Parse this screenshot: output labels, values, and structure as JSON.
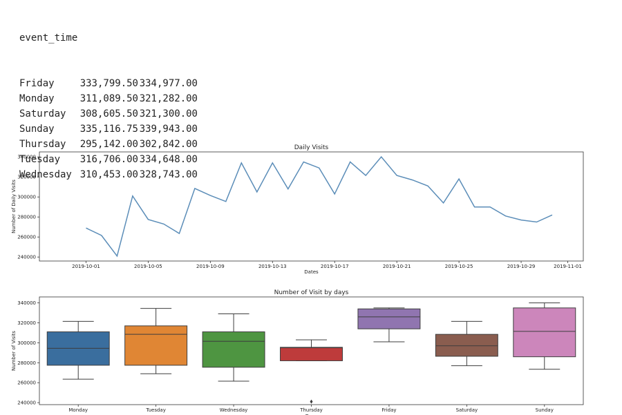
{
  "output": {
    "header": "event_time",
    "rows": [
      {
        "day": "Friday",
        "v1": "333,799.50",
        "v2": "334,977.00"
      },
      {
        "day": "Monday",
        "v1": "311,089.50",
        "v2": "321,282.00"
      },
      {
        "day": "Saturday",
        "v1": "308,605.50",
        "v2": "321,300.00"
      },
      {
        "day": "Sunday",
        "v1": "335,116.75",
        "v2": "339,943.00"
      },
      {
        "day": "Thursday",
        "v1": "295,142.00",
        "v2": "302,842.00"
      },
      {
        "day": "Tuesday",
        "v1": "316,706.00",
        "v2": "334,648.00"
      },
      {
        "day": "Wednesday",
        "v1": "310,453.00",
        "v2": "328,743.00"
      }
    ]
  },
  "chart_data": [
    {
      "type": "line",
      "title": "Daily Visits",
      "xlabel": "Dates",
      "ylabel": "Number of Daily Visits",
      "ylim": [
        236000,
        345000
      ],
      "yticks": [
        240000,
        260000,
        280000,
        300000,
        320000,
        340000
      ],
      "xticks": [
        "2019-10-01",
        "2019-10-05",
        "2019-10-09",
        "2019-10-13",
        "2019-10-17",
        "2019-10-21",
        "2019-10-25",
        "2019-10-29",
        "2019-11-01"
      ],
      "x_start": "2019-10-01",
      "color": "#5b8db8",
      "series": [
        {
          "x": [
            "2019-10-01",
            "2019-10-02",
            "2019-10-03",
            "2019-10-04",
            "2019-10-05",
            "2019-10-06",
            "2019-10-07",
            "2019-10-08",
            "2019-10-09",
            "2019-10-10",
            "2019-10-11",
            "2019-10-12",
            "2019-10-13",
            "2019-10-14",
            "2019-10-15",
            "2019-10-16",
            "2019-10-17",
            "2019-10-18",
            "2019-10-19",
            "2019-10-20",
            "2019-10-21",
            "2019-10-22",
            "2019-10-23",
            "2019-10-24",
            "2019-10-25",
            "2019-10-26",
            "2019-10-27",
            "2019-10-28",
            "2019-10-29",
            "2019-10-30",
            "2019-10-31"
          ],
          "values": [
            269000,
            261500,
            241000,
            301000,
            277500,
            273000,
            263500,
            308500,
            301500,
            295500,
            334000,
            305000,
            334000,
            308000,
            335000,
            329000,
            303000,
            335000,
            321500,
            340000,
            321500,
            317000,
            311000,
            294000,
            318000,
            290000,
            290000,
            281000,
            277000,
            275000,
            282000
          ]
        }
      ]
    },
    {
      "type": "box",
      "title": "Number of Visit by days",
      "xlabel": "Days",
      "ylabel": "Number of Visits",
      "ylim": [
        238000,
        346000
      ],
      "yticks": [
        240000,
        260000,
        280000,
        300000,
        320000,
        340000
      ],
      "categories": [
        "Monday",
        "Tuesday",
        "Wednesday",
        "Thursday",
        "Friday",
        "Saturday",
        "Sunday"
      ],
      "boxes": [
        {
          "name": "Monday",
          "whislo": 263500,
          "q1": 277500,
          "med": 294500,
          "q3": 311000,
          "whishi": 321500,
          "fliers": [],
          "color": "#3a6e9e"
        },
        {
          "name": "Tuesday",
          "whislo": 269000,
          "q1": 277500,
          "med": 308500,
          "q3": 317000,
          "whishi": 334500,
          "fliers": [],
          "color": "#e08634"
        },
        {
          "name": "Wednesday",
          "whislo": 261500,
          "q1": 275500,
          "med": 301500,
          "q3": 311000,
          "whishi": 329000,
          "fliers": [],
          "color": "#4e9541"
        },
        {
          "name": "Thursday",
          "whislo": 282000,
          "q1": 282000,
          "med": 295000,
          "q3": 295500,
          "whishi": 303000,
          "fliers": [
            241000
          ],
          "color": "#be3b3b"
        },
        {
          "name": "Friday",
          "whislo": 301000,
          "q1": 314000,
          "med": 326000,
          "q3": 334000,
          "whishi": 335000,
          "fliers": [],
          "color": "#9075b0"
        },
        {
          "name": "Saturday",
          "whislo": 277000,
          "q1": 286500,
          "med": 297000,
          "q3": 308500,
          "whishi": 321500,
          "fliers": [],
          "color": "#8a5d4f"
        },
        {
          "name": "Sunday",
          "whislo": 273500,
          "q1": 286000,
          "med": 311500,
          "q3": 335000,
          "whishi": 340000,
          "fliers": [],
          "color": "#cc86bb"
        }
      ]
    }
  ]
}
